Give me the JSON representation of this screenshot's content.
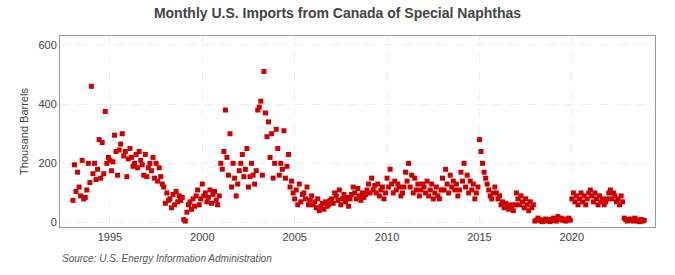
{
  "chart_data": {
    "type": "scatter",
    "title": "Monthly U.S. Imports from Canada of Special Naphthas",
    "ylabel": "Thousand Barrels",
    "annotations": [
      "Source: U.S. Energy Information Administration"
    ],
    "color": "#cc0000",
    "marker": "square",
    "grid": true,
    "xlim": [
      1992.3,
      2024.5
    ],
    "xticks": [
      1995,
      2000,
      2005,
      2010,
      2015,
      2020
    ],
    "ylim": [
      -15,
      630
    ],
    "yticks": [
      0,
      200,
      400,
      600
    ],
    "x": [
      1993,
      1993.0833,
      1993.1667,
      1993.25,
      1993.3333,
      1993.4167,
      1993.5,
      1993.5833,
      1993.6667,
      1993.75,
      1993.8333,
      1993.9167,
      1994,
      1994.0833,
      1994.1667,
      1994.25,
      1994.3333,
      1994.4167,
      1994.5,
      1994.5833,
      1994.6667,
      1994.75,
      1994.8333,
      1994.9167,
      1995,
      1995.0833,
      1995.1667,
      1995.25,
      1995.3333,
      1995.4167,
      1995.5,
      1995.5833,
      1995.6667,
      1995.75,
      1995.8333,
      1995.9167,
      1996,
      1996.0833,
      1996.1667,
      1996.25,
      1996.3333,
      1996.4167,
      1996.5,
      1996.5833,
      1996.6667,
      1996.75,
      1996.8333,
      1996.9167,
      1997,
      1997.0833,
      1997.1667,
      1997.25,
      1997.3333,
      1997.4167,
      1997.5,
      1997.5833,
      1997.6667,
      1997.75,
      1997.8333,
      1997.9167,
      1998,
      1998.0833,
      1998.1667,
      1998.25,
      1998.3333,
      1998.4167,
      1998.5,
      1998.5833,
      1998.6667,
      1998.75,
      1998.8333,
      1998.9167,
      1999,
      1999.0833,
      1999.1667,
      1999.25,
      1999.3333,
      1999.4167,
      1999.5,
      1999.5833,
      1999.6667,
      1999.75,
      1999.8333,
      1999.9167,
      2000,
      2000.0833,
      2000.1667,
      2000.25,
      2000.3333,
      2000.4167,
      2000.5,
      2000.5833,
      2000.6667,
      2000.75,
      2000.8333,
      2000.9167,
      2001,
      2001.0833,
      2001.1667,
      2001.25,
      2001.3333,
      2001.4167,
      2001.5,
      2001.5833,
      2001.6667,
      2001.75,
      2001.8333,
      2001.9167,
      2002,
      2002.0833,
      2002.1667,
      2002.25,
      2002.3333,
      2002.4167,
      2002.5,
      2002.5833,
      2002.6667,
      2002.75,
      2002.8333,
      2002.9167,
      2003,
      2003.0833,
      2003.1667,
      2003.25,
      2003.3333,
      2003.4167,
      2003.5,
      2003.5833,
      2003.6667,
      2003.75,
      2003.8333,
      2003.9167,
      2004,
      2004.0833,
      2004.1667,
      2004.25,
      2004.3333,
      2004.4167,
      2004.5,
      2004.5833,
      2004.6667,
      2004.75,
      2004.8333,
      2004.9167,
      2005,
      2005.0833,
      2005.1667,
      2005.25,
      2005.3333,
      2005.4167,
      2005.5,
      2005.5833,
      2005.6667,
      2005.75,
      2005.8333,
      2005.9167,
      2006,
      2006.0833,
      2006.1667,
      2006.25,
      2006.3333,
      2006.4167,
      2006.5,
      2006.5833,
      2006.6667,
      2006.75,
      2006.8333,
      2006.9167,
      2007,
      2007.0833,
      2007.1667,
      2007.25,
      2007.3333,
      2007.4167,
      2007.5,
      2007.5833,
      2007.6667,
      2007.75,
      2007.8333,
      2007.9167,
      2008,
      2008.0833,
      2008.1667,
      2008.25,
      2008.3333,
      2008.4167,
      2008.5,
      2008.5833,
      2008.6667,
      2008.75,
      2008.8333,
      2008.9167,
      2009,
      2009.0833,
      2009.1667,
      2009.25,
      2009.3333,
      2009.4167,
      2009.5,
      2009.5833,
      2009.6667,
      2009.75,
      2009.8333,
      2009.9167,
      2010,
      2010.0833,
      2010.1667,
      2010.25,
      2010.3333,
      2010.4167,
      2010.5,
      2010.5833,
      2010.6667,
      2010.75,
      2010.8333,
      2010.9167,
      2011,
      2011.0833,
      2011.1667,
      2011.25,
      2011.3333,
      2011.4167,
      2011.5,
      2011.5833,
      2011.6667,
      2011.75,
      2011.8333,
      2011.9167,
      2012,
      2012.0833,
      2012.1667,
      2012.25,
      2012.3333,
      2012.4167,
      2012.5,
      2012.5833,
      2012.6667,
      2012.75,
      2012.8333,
      2012.9167,
      2013,
      2013.0833,
      2013.1667,
      2013.25,
      2013.3333,
      2013.4167,
      2013.5,
      2013.5833,
      2013.6667,
      2013.75,
      2013.8333,
      2013.9167,
      2014,
      2014.0833,
      2014.1667,
      2014.25,
      2014.3333,
      2014.4167,
      2014.5,
      2014.5833,
      2014.6667,
      2014.75,
      2014.8333,
      2014.9167,
      2015,
      2015.0833,
      2015.1667,
      2015.25,
      2015.3333,
      2015.4167,
      2015.5,
      2015.5833,
      2015.6667,
      2015.75,
      2015.8333,
      2015.9167,
      2016,
      2016.0833,
      2016.1667,
      2016.25,
      2016.3333,
      2016.4167,
      2016.5,
      2016.5833,
      2016.6667,
      2016.75,
      2016.8333,
      2016.9167,
      2017,
      2017.0833,
      2017.1667,
      2017.25,
      2017.3333,
      2017.4167,
      2017.5,
      2017.5833,
      2017.6667,
      2017.75,
      2017.8333,
      2017.9167,
      2018,
      2018.0833,
      2018.1667,
      2018.25,
      2018.3333,
      2018.4167,
      2018.5,
      2018.5833,
      2018.6667,
      2018.75,
      2018.8333,
      2018.9167,
      2019,
      2019.0833,
      2019.1667,
      2019.25,
      2019.3333,
      2019.4167,
      2019.5,
      2019.5833,
      2019.6667,
      2019.75,
      2019.8333,
      2019.9167,
      2020,
      2020.0833,
      2020.1667,
      2020.25,
      2020.3333,
      2020.4167,
      2020.5,
      2020.5833,
      2020.6667,
      2020.75,
      2020.8333,
      2020.9167,
      2021,
      2021.0833,
      2021.1667,
      2021.25,
      2021.3333,
      2021.4167,
      2021.5,
      2021.5833,
      2021.6667,
      2021.75,
      2021.8333,
      2021.9167,
      2022,
      2022.0833,
      2022.1667,
      2022.25,
      2022.3333,
      2022.4167,
      2022.5,
      2022.5833,
      2022.6667,
      2022.75,
      2022.8333,
      2022.9167,
      2023,
      2023.0833,
      2023.1667,
      2023.25,
      2023.3333,
      2023.4167,
      2023.5,
      2023.5833,
      2023.6667,
      2023.75,
      2023.8333,
      2023.9167
    ],
    "values": [
      75,
      195,
      105,
      170,
      120,
      90,
      210,
      80,
      85,
      110,
      200,
      135,
      460,
      165,
      200,
      145,
      180,
      280,
      150,
      270,
      165,
      375,
      200,
      220,
      210,
      175,
      205,
      295,
      240,
      160,
      245,
      265,
      300,
      225,
      240,
      155,
      215,
      250,
      220,
      190,
      200,
      230,
      185,
      240,
      210,
      195,
      160,
      230,
      155,
      185,
      200,
      175,
      220,
      150,
      200,
      140,
      185,
      155,
      130,
      120,
      65,
      100,
      75,
      80,
      50,
      95,
      60,
      105,
      70,
      90,
      75,
      85,
      10,
      5,
      35,
      60,
      70,
      45,
      80,
      55,
      90,
      110,
      60,
      80,
      130,
      90,
      100,
      70,
      85,
      110,
      65,
      95,
      105,
      75,
      60,
      90,
      200,
      180,
      240,
      380,
      220,
      160,
      300,
      120,
      200,
      150,
      90,
      130,
      175,
      200,
      230,
      155,
      180,
      250,
      120,
      155,
      200,
      160,
      130,
      175,
      380,
      390,
      410,
      160,
      510,
      370,
      290,
      340,
      220,
      300,
      150,
      200,
      315,
      250,
      160,
      200,
      180,
      310,
      150,
      190,
      230,
      120,
      140,
      100,
      80,
      110,
      60,
      130,
      70,
      95,
      100,
      80,
      120,
      60,
      75,
      90,
      60,
      70,
      50,
      80,
      40,
      55,
      65,
      45,
      70,
      55,
      60,
      75,
      80,
      65,
      100,
      90,
      75,
      110,
      60,
      80,
      95,
      70,
      85,
      55,
      80,
      95,
      120,
      100,
      80,
      115,
      90,
      75,
      100,
      85,
      95,
      110,
      130,
      100,
      150,
      110,
      125,
      100,
      130,
      90,
      110,
      120,
      80,
      100,
      150,
      120,
      180,
      130,
      100,
      140,
      110,
      130,
      120,
      90,
      100,
      120,
      170,
      140,
      200,
      120,
      160,
      100,
      150,
      110,
      130,
      90,
      110,
      130,
      120,
      100,
      140,
      90,
      110,
      130,
      80,
      100,
      120,
      90,
      80,
      110,
      150,
      110,
      180,
      130,
      100,
      160,
      120,
      140,
      110,
      130,
      90,
      110,
      170,
      140,
      200,
      120,
      160,
      100,
      140,
      110,
      130,
      80,
      100,
      120,
      280,
      240,
      200,
      170,
      150,
      130,
      110,
      90,
      80,
      100,
      120,
      100,
      80,
      90,
      60,
      70,
      50,
      65,
      55,
      45,
      60,
      50,
      40,
      60,
      100,
      80,
      60,
      90,
      70,
      50,
      80,
      60,
      40,
      70,
      50,
      60,
      5,
      8,
      15,
      10,
      5,
      3,
      8,
      12,
      5,
      10,
      3,
      7,
      15,
      10,
      5,
      20,
      10,
      15,
      8,
      12,
      5,
      10,
      15,
      8,
      80,
      100,
      70,
      90,
      60,
      80,
      100,
      70,
      90,
      60,
      80,
      100,
      110,
      90,
      70,
      100,
      80,
      60,
      90,
      70,
      80,
      60,
      70,
      80,
      100,
      110,
      80,
      100,
      90,
      70,
      80,
      60,
      90,
      70,
      15,
      10,
      5,
      8,
      12,
      10,
      5,
      15,
      8,
      5,
      3,
      10,
      5,
      8
    ]
  }
}
